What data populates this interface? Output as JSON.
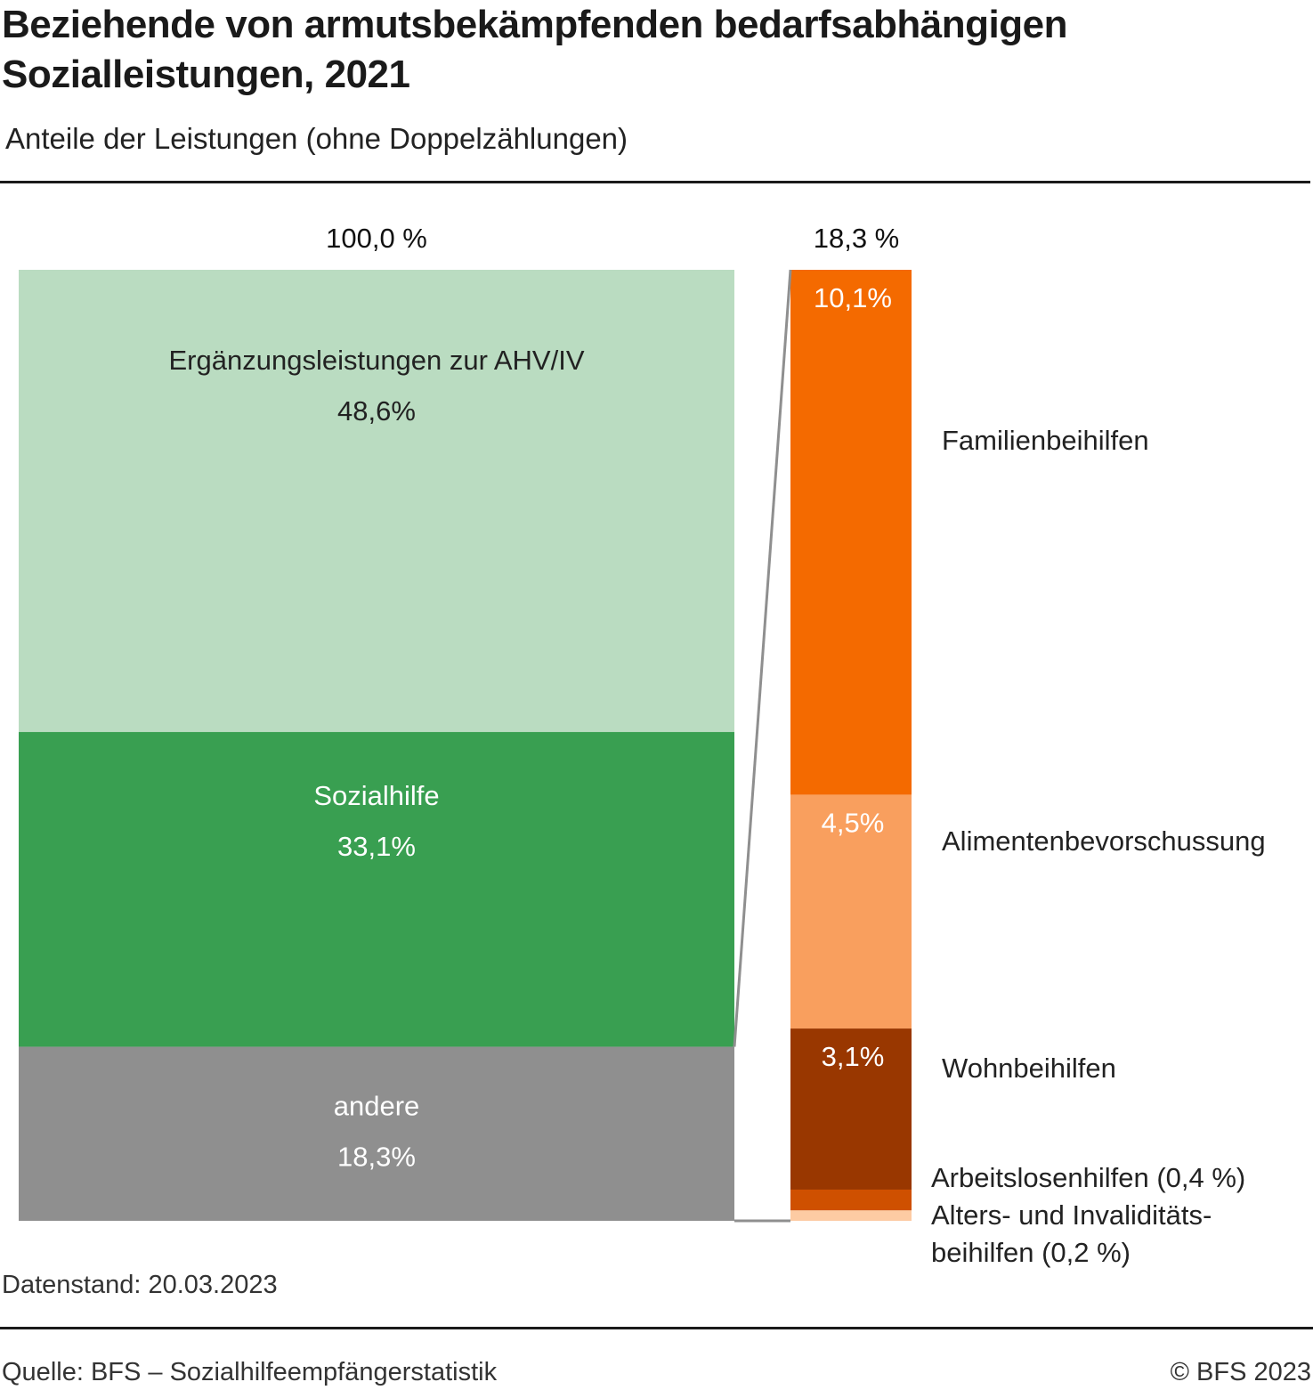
{
  "header": {
    "title_line1": "Beziehende von armutsbekämpfenden bedarfsabhängigen",
    "title_line2": "Sozialleistungen, 2021",
    "subtitle": "Anteile der Leistungen (ohne Doppelzählungen)"
  },
  "footer": {
    "datenstand": "Datenstand: 20.03.2023",
    "source": "Quelle: BFS – Sozialhilfeempfängerstatistik",
    "copyright": "© BFS 2023"
  },
  "chart_data": {
    "type": "bar",
    "subtype": "bar-of-bar (stacked 100% with breakdown)",
    "title": "Beziehende von armutsbekämpfenden bedarfsabhängigen Sozialleistungen, 2021",
    "subtitle": "Anteile der Leistungen (ohne Doppelzählungen)",
    "main_bar": {
      "total_label": "100,0 %",
      "total": 100.0,
      "segments": [
        {
          "name": "Ergänzungsleistungen zur AHV/IV",
          "value": 48.6,
          "label": "48,6%",
          "color": "#badcc1",
          "text_color": "#222222"
        },
        {
          "name": "Sozialhilfe",
          "value": 33.1,
          "label": "33,1%",
          "color": "#399f51",
          "text_color": "#ffffff"
        },
        {
          "name": "andere",
          "value": 18.3,
          "label": "18,3%",
          "color": "#8f8f8f",
          "text_color": "#ffffff"
        }
      ]
    },
    "breakdown_bar": {
      "total_label": "18,3 %",
      "total": 18.3,
      "segments": [
        {
          "name": "Familienbeihilfen",
          "value": 10.1,
          "label": "10,1%",
          "color": "#f46a00",
          "legend": "Familienbeihilfen"
        },
        {
          "name": "Alimentenbevorschussung",
          "value": 4.5,
          "label": "4,5%",
          "color": "#f99f5e",
          "legend": "Alimentenbevorschussung"
        },
        {
          "name": "Wohnbeihilfen",
          "value": 3.1,
          "label": "3,1%",
          "color": "#993700",
          "legend": "Wohnbeihilfen"
        },
        {
          "name": "Arbeitslosenhilfen",
          "value": 0.4,
          "label": "",
          "color": "#cf5000",
          "legend": "Arbeitslosenhilfen (0,4 %)"
        },
        {
          "name": "Alters- und Invaliditätsbeihilfen",
          "value": 0.2,
          "label": "",
          "color": "#fdcba3",
          "legend_line1": "Alters- und Invaliditäts-",
          "legend_line2": "beihilfen (0,2 %)"
        }
      ]
    },
    "connector_color": "#8f8f8f"
  }
}
